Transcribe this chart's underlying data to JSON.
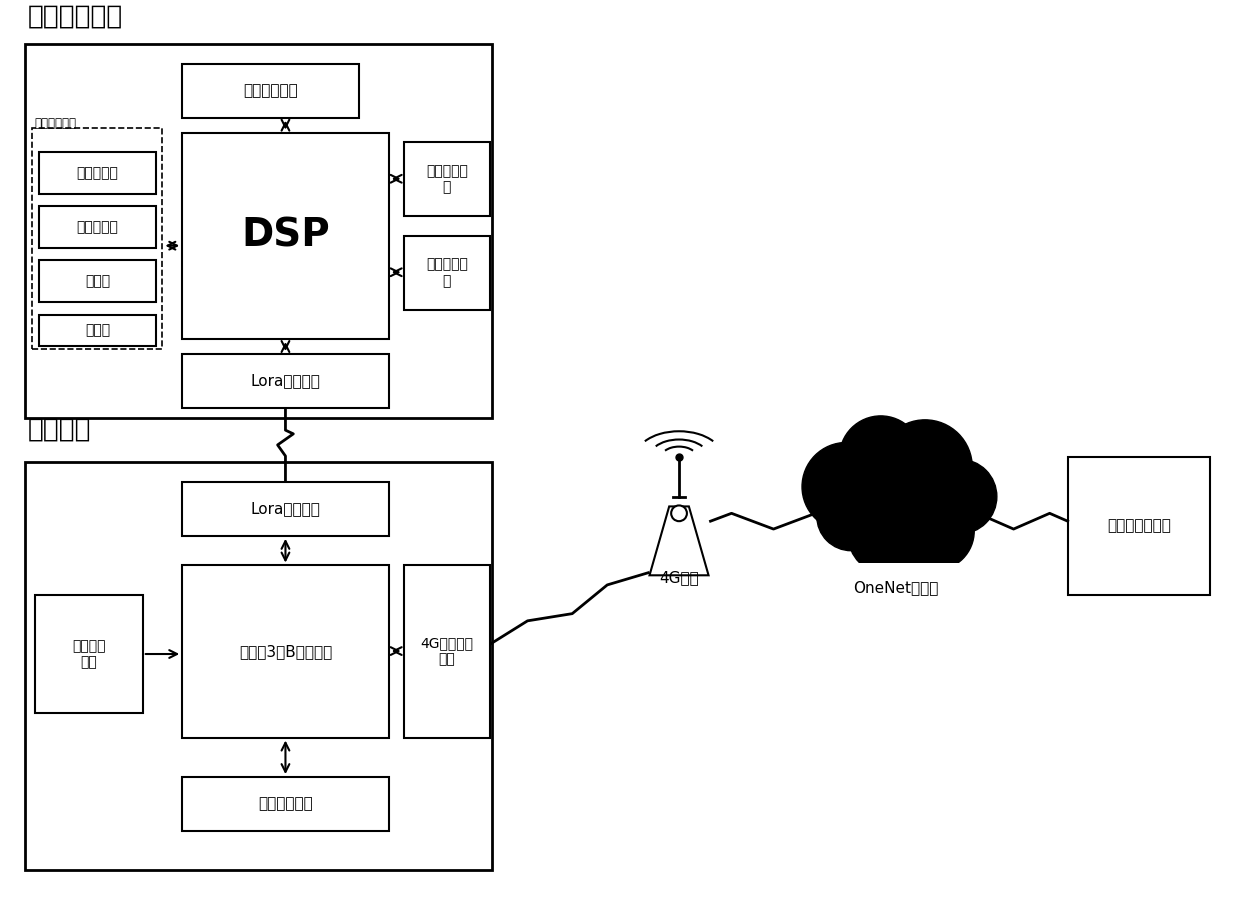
{
  "title_auto": "自动控制模块",
  "title_gateway": "网关模块",
  "bg_color": "#ffffff",
  "dashed_box_label": "信号处理模块",
  "sensor_boxes": [
    "压力传感器",
    "温度传感器",
    "编码器",
    "待扩展"
  ],
  "dsp_label": "DSP",
  "ctrl_out_label": "控制输出模\n块",
  "ctrl_in_label": "控制输入模\n块",
  "lora_top_label": "Lora通信模块",
  "lora_bottom_label": "Lora通信模块",
  "raspberry_label": "树莓派3代B型处理器",
  "video_label": "视频采集\n模块",
  "comm_4g_label": "4G无线通信\n模块",
  "reserved_top_label": "预留功能模块",
  "reserved_bottom_label": "预留功能模块",
  "station_4g_label": "4G基站",
  "cloud_label": "OneNet云平台",
  "monitor_label": "上位机监控界面"
}
